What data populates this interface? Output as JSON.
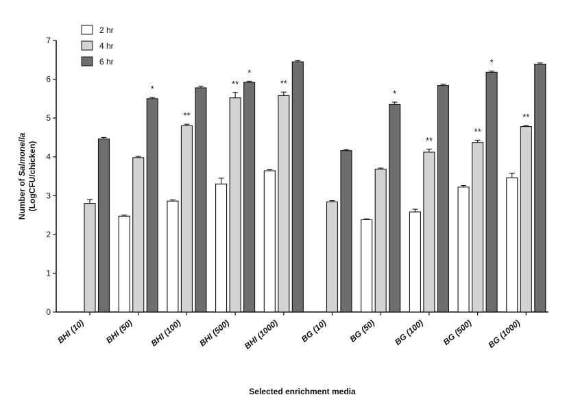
{
  "chart_data": {
    "type": "bar",
    "xlabel": "Selected enrichment media",
    "ylabel_line1_prefix": "Number of ",
    "ylabel_line1_italic": "Salmonella",
    "ylabel_line2": "(LogCFU/chicken)",
    "ylim": [
      0,
      7
    ],
    "yticks": [
      "0",
      "1",
      "2",
      "3",
      "4",
      "5",
      "6",
      "7"
    ],
    "grid": false,
    "legend_position": "top-left",
    "categories": [
      "BHI (10)",
      "BHI (50)",
      "BHI (100)",
      "BHI (500)",
      "BHI (1000)",
      "BG (10)",
      "BG (50)",
      "BG (100)",
      "BG (500)",
      "BG (1000)"
    ],
    "series": [
      {
        "name": "2 hr",
        "color": "#ffffff",
        "values": [
          0,
          2.47,
          2.86,
          3.3,
          3.64,
          0,
          2.38,
          2.58,
          3.22,
          3.46
        ],
        "errors": [
          0,
          0.03,
          0.03,
          0.15,
          0.03,
          0,
          0.02,
          0.07,
          0.04,
          0.12
        ],
        "significance": [
          "",
          "",
          "",
          "",
          "",
          "",
          "",
          "",
          "",
          ""
        ]
      },
      {
        "name": "4 hr",
        "color": "#d3d3d3",
        "values": [
          2.8,
          3.98,
          4.8,
          5.52,
          5.58,
          2.84,
          3.68,
          4.12,
          4.37,
          4.78
        ],
        "errors": [
          0.1,
          0.03,
          0.04,
          0.14,
          0.09,
          0.03,
          0.03,
          0.08,
          0.06,
          0.03
        ],
        "significance": [
          "",
          "",
          "**",
          "**",
          "**",
          "",
          "",
          "**",
          "**",
          "**"
        ]
      },
      {
        "name": "6 hr",
        "color": "#6e6e6e",
        "values": [
          4.46,
          5.5,
          5.78,
          5.92,
          6.45,
          4.16,
          5.35,
          5.84,
          6.18,
          6.39
        ],
        "errors": [
          0.04,
          0.03,
          0.04,
          0.03,
          0.03,
          0.03,
          0.06,
          0.03,
          0.03,
          0.03
        ],
        "significance": [
          "",
          "*",
          "",
          "*",
          "",
          "",
          "*",
          "",
          "*",
          ""
        ]
      }
    ]
  }
}
